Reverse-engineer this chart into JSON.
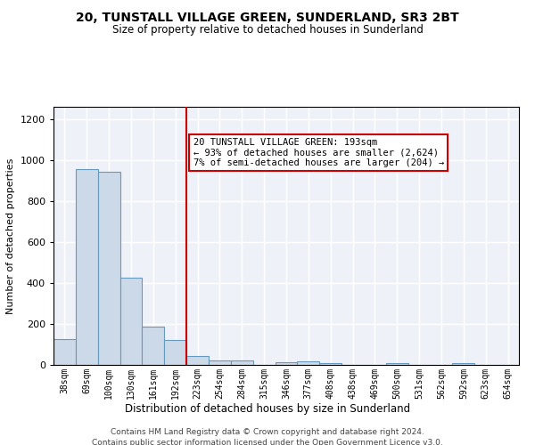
{
  "title": "20, TUNSTALL VILLAGE GREEN, SUNDERLAND, SR3 2BT",
  "subtitle": "Size of property relative to detached houses in Sunderland",
  "xlabel": "Distribution of detached houses by size in Sunderland",
  "ylabel": "Number of detached properties",
  "footer_line1": "Contains HM Land Registry data © Crown copyright and database right 2024.",
  "footer_line2": "Contains public sector information licensed under the Open Government Licence v3.0.",
  "bar_color": "#ccd9e8",
  "bar_edge_color": "#6699bb",
  "annotation_box_color": "#cc0000",
  "vline_color": "#cc0000",
  "background_color": "#eef2f8",
  "grid_color": "#ffffff",
  "categories": [
    "38sqm",
    "69sqm",
    "100sqm",
    "130sqm",
    "161sqm",
    "192sqm",
    "223sqm",
    "254sqm",
    "284sqm",
    "315sqm",
    "346sqm",
    "377sqm",
    "408sqm",
    "438sqm",
    "469sqm",
    "500sqm",
    "531sqm",
    "562sqm",
    "592sqm",
    "623sqm",
    "654sqm"
  ],
  "values": [
    125,
    955,
    945,
    425,
    185,
    120,
    45,
    20,
    20,
    0,
    15,
    18,
    10,
    0,
    0,
    8,
    0,
    0,
    8,
    0,
    0
  ],
  "ylim": [
    0,
    1260
  ],
  "yticks": [
    0,
    200,
    400,
    600,
    800,
    1000,
    1200
  ],
  "property_line_x": 5.5,
  "annotation_text": "20 TUNSTALL VILLAGE GREEN: 193sqm\n← 93% of detached houses are smaller (2,624)\n7% of semi-detached houses are larger (204) →",
  "title_fontsize": 10,
  "subtitle_fontsize": 8.5,
  "ylabel_fontsize": 8,
  "xlabel_fontsize": 8.5,
  "footer_fontsize": 6.5
}
